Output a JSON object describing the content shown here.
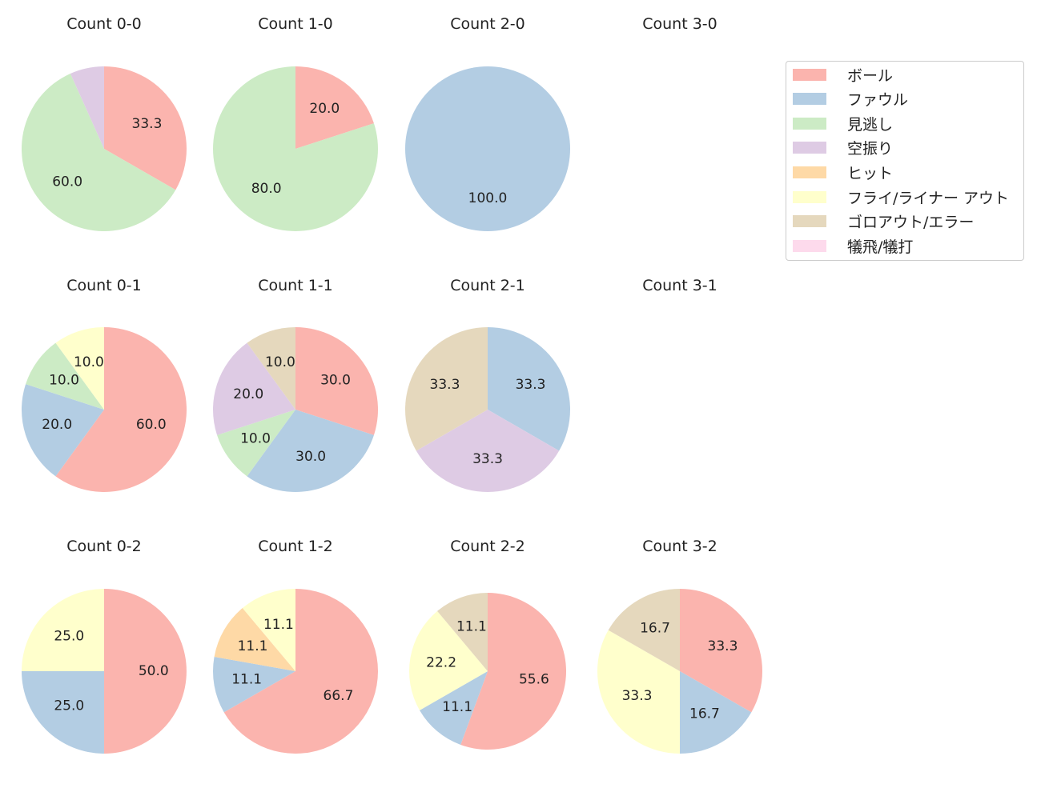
{
  "chart_data": {
    "type": "pie",
    "categories": [
      "ボール",
      "ファウル",
      "見逃し",
      "空振り",
      "ヒット",
      "フライ/ライナー アウト",
      "ゴロアウト/エラー",
      "犠飛/犠打"
    ],
    "colors": [
      "#fbb4ae",
      "#b3cde3",
      "#ccebc5",
      "#decbe4",
      "#fed9a6",
      "#ffffcc",
      "#e5d8bd",
      "#fddaec"
    ],
    "legend_position": "right",
    "start_angle": 90,
    "direction": "clockwise",
    "charts": [
      {
        "title": "Count 0-0",
        "slices": [
          {
            "category": 0,
            "value": 33.3,
            "label": "33.3"
          },
          {
            "category": 2,
            "value": 60.0,
            "label": "60.0"
          },
          {
            "category": 3,
            "value": 6.7,
            "label": ""
          }
        ]
      },
      {
        "title": "Count 1-0",
        "slices": [
          {
            "category": 0,
            "value": 20.0,
            "label": "20.0"
          },
          {
            "category": 2,
            "value": 80.0,
            "label": "80.0"
          }
        ]
      },
      {
        "title": "Count 2-0",
        "slices": [
          {
            "category": 1,
            "value": 100.0,
            "label": "100.0"
          }
        ]
      },
      {
        "title": "Count 3-0",
        "slices": []
      },
      {
        "title": "Count 0-1",
        "slices": [
          {
            "category": 0,
            "value": 60.0,
            "label": "60.0"
          },
          {
            "category": 1,
            "value": 20.0,
            "label": "20.0"
          },
          {
            "category": 2,
            "value": 10.0,
            "label": "10.0"
          },
          {
            "category": 5,
            "value": 10.0,
            "label": "10.0"
          }
        ]
      },
      {
        "title": "Count 1-1",
        "slices": [
          {
            "category": 0,
            "value": 30.0,
            "label": "30.0"
          },
          {
            "category": 1,
            "value": 30.0,
            "label": "30.0"
          },
          {
            "category": 2,
            "value": 10.0,
            "label": "10.0"
          },
          {
            "category": 3,
            "value": 20.0,
            "label": "20.0"
          },
          {
            "category": 6,
            "value": 10.0,
            "label": "10.0"
          }
        ]
      },
      {
        "title": "Count 2-1",
        "slices": [
          {
            "category": 1,
            "value": 33.3,
            "label": "33.3"
          },
          {
            "category": 3,
            "value": 33.3,
            "label": "33.3"
          },
          {
            "category": 6,
            "value": 33.3,
            "label": "33.3"
          }
        ]
      },
      {
        "title": "Count 3-1",
        "slices": []
      },
      {
        "title": "Count 0-2",
        "slices": [
          {
            "category": 0,
            "value": 50.0,
            "label": "50.0"
          },
          {
            "category": 1,
            "value": 25.0,
            "label": "25.0"
          },
          {
            "category": 5,
            "value": 25.0,
            "label": "25.0"
          }
        ]
      },
      {
        "title": "Count 1-2",
        "slices": [
          {
            "category": 0,
            "value": 66.7,
            "label": "66.7"
          },
          {
            "category": 1,
            "value": 11.1,
            "label": "11.1"
          },
          {
            "category": 4,
            "value": 11.1,
            "label": "11.1"
          },
          {
            "category": 5,
            "value": 11.1,
            "label": "11.1"
          }
        ]
      },
      {
        "title": "Count 2-2",
        "slices": [
          {
            "category": 0,
            "value": 55.6,
            "label": "55.6"
          },
          {
            "category": 1,
            "value": 11.1,
            "label": "11.1"
          },
          {
            "category": 5,
            "value": 22.2,
            "label": "22.2"
          },
          {
            "category": 6,
            "value": 11.1,
            "label": "11.1"
          }
        ]
      },
      {
        "title": "Count 3-2",
        "slices": [
          {
            "category": 0,
            "value": 33.3,
            "label": "33.3"
          },
          {
            "category": 1,
            "value": 16.7,
            "label": "16.7"
          },
          {
            "category": 5,
            "value": 33.3,
            "label": "33.3"
          },
          {
            "category": 6,
            "value": 16.7,
            "label": "16.7"
          }
        ]
      }
    ]
  }
}
